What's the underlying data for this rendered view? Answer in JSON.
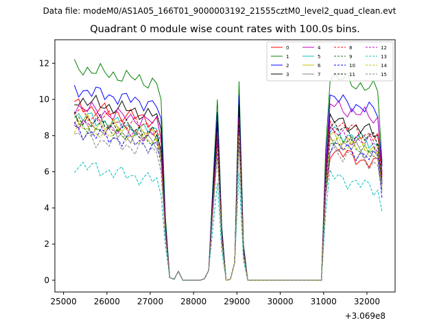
{
  "figure": {
    "suptitle": "Data file: modeM0/AS1A05_166T01_9000003192_21555cztM0_level2_quad_clean.evt",
    "title": "Quadrant 0 module wise count rates with 100.0s bins.",
    "offset_label": "+3.069e8"
  },
  "chart_data": {
    "type": "line",
    "title": "Quadrant 0 module wise count rates with 100.0s bins.",
    "xlabel": "",
    "ylabel": "",
    "x_offset": 306900000,
    "xlim": [
      24800,
      32650
    ],
    "ylim": [
      -0.65,
      13.3
    ],
    "xticks": [
      25000,
      26000,
      27000,
      28000,
      29000,
      30000,
      31000,
      32000
    ],
    "yticks": [
      0,
      2,
      4,
      6,
      8,
      10,
      12
    ],
    "legend": {
      "position": "top-right",
      "columns": 4
    },
    "x": [
      25250,
      25350,
      25450,
      25550,
      25650,
      25750,
      25850,
      25950,
      26050,
      26150,
      26250,
      26350,
      26450,
      26550,
      26650,
      26750,
      26850,
      26950,
      27050,
      27150,
      27250,
      27350,
      27450,
      27550,
      27650,
      27750,
      27850,
      27950,
      28050,
      28150,
      28250,
      28350,
      28450,
      28550,
      28650,
      28750,
      28850,
      28950,
      29050,
      29150,
      29250,
      29350,
      29450,
      29550,
      29650,
      29750,
      29850,
      29950,
      30050,
      30150,
      30250,
      30350,
      30450,
      30550,
      30650,
      30750,
      30850,
      30950,
      31050,
      31150,
      31250,
      31350,
      31450,
      31550,
      31650,
      31750,
      31850,
      31950,
      32050,
      32150,
      32250,
      32350
    ],
    "series": [
      {
        "name": "0",
        "color": "#ff0000",
        "dash": "solid",
        "base": 9.7,
        "peak": 8.6,
        "mid": 7.2,
        "end": 5.8
      },
      {
        "name": "1",
        "color": "#008000",
        "dash": "solid",
        "base": 11.8,
        "peak": 10.0,
        "mid": 11.3,
        "end": 6.5
      },
      {
        "name": "2",
        "color": "#0000ff",
        "dash": "solid",
        "base": 10.6,
        "peak": 9.3,
        "mid": 10.1,
        "end": 6.3
      },
      {
        "name": "3",
        "color": "#000000",
        "dash": "solid",
        "base": 10.0,
        "peak": 8.8,
        "mid": 8.9,
        "end": 6.0
      },
      {
        "name": "4",
        "color": "#bf00bf",
        "dash": "solid",
        "base": 9.6,
        "peak": 8.2,
        "mid": 9.7,
        "end": 5.8
      },
      {
        "name": "5",
        "color": "#00bfbf",
        "dash": "solid",
        "base": 9.1,
        "peak": 7.9,
        "mid": 8.3,
        "end": 5.4
      },
      {
        "name": "6",
        "color": "#bfbf00",
        "dash": "solid",
        "base": 8.9,
        "peak": 7.6,
        "mid": 8.0,
        "end": 5.2
      },
      {
        "name": "7",
        "color": "#808080",
        "dash": "solid",
        "base": 8.6,
        "peak": 7.4,
        "mid": 7.7,
        "end": 5.0
      },
      {
        "name": "8",
        "color": "#ff0000",
        "dash": "dashed",
        "base": 9.3,
        "peak": 8.0,
        "mid": 8.7,
        "end": 5.6
      },
      {
        "name": "9",
        "color": "#008000",
        "dash": "dashed",
        "base": 8.7,
        "peak": 7.5,
        "mid": 7.9,
        "end": 5.3
      },
      {
        "name": "10",
        "color": "#0000ff",
        "dash": "dashed",
        "base": 8.3,
        "peak": 7.1,
        "mid": 7.5,
        "end": 4.5
      },
      {
        "name": "11",
        "color": "#000000",
        "dash": "dashed",
        "base": 9.0,
        "peak": 7.8,
        "mid": 8.5,
        "end": 5.5
      },
      {
        "name": "12",
        "color": "#bf00bf",
        "dash": "dashed",
        "base": 8.8,
        "peak": 7.7,
        "mid": 8.2,
        "end": 5.3
      },
      {
        "name": "13",
        "color": "#00bfbf",
        "dash": "dashed",
        "base": 6.4,
        "peak": 5.4,
        "mid": 5.8,
        "end": 3.8
      },
      {
        "name": "14",
        "color": "#bfbf00",
        "dash": "dashed",
        "base": 8.5,
        "peak": 7.3,
        "mid": 7.8,
        "end": 5.1
      },
      {
        "name": "15",
        "color": "#808080",
        "dash": "dashed",
        "base": 8.0,
        "peak": 6.9,
        "mid": 7.2,
        "end": 4.9
      }
    ]
  }
}
